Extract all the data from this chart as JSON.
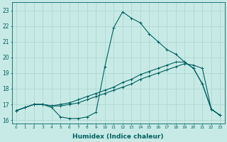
{
  "xlabel": "Humidex (Indice chaleur)",
  "xlim": [
    -0.5,
    23.5
  ],
  "ylim": [
    15.8,
    23.5
  ],
  "yticks": [
    16,
    17,
    18,
    19,
    20,
    21,
    22,
    23
  ],
  "xticks": [
    0,
    1,
    2,
    3,
    4,
    5,
    6,
    7,
    8,
    9,
    10,
    11,
    12,
    13,
    14,
    15,
    16,
    17,
    18,
    19,
    20,
    21,
    22,
    23
  ],
  "bg_color": "#c8eae6",
  "grid_color": "#a8d4d0",
  "line_color": "#006060",
  "series": {
    "main": [
      16.6,
      16.8,
      17.0,
      17.0,
      16.8,
      16.2,
      16.1,
      16.1,
      16.2,
      16.5,
      19.4,
      21.9,
      22.9,
      22.5,
      22.2,
      21.5,
      21.0,
      20.5,
      20.2,
      19.7,
      19.3,
      18.3,
      16.7,
      16.3
    ],
    "line2": [
      16.6,
      16.8,
      17.0,
      17.0,
      16.9,
      16.9,
      17.0,
      17.1,
      17.3,
      17.5,
      17.7,
      17.9,
      18.1,
      18.3,
      18.6,
      18.8,
      19.0,
      19.2,
      19.4,
      19.6,
      19.5,
      19.3,
      16.7,
      16.3
    ],
    "line3": [
      16.6,
      16.8,
      17.0,
      17.0,
      16.9,
      17.0,
      17.1,
      17.3,
      17.5,
      17.7,
      17.9,
      18.1,
      18.4,
      18.6,
      18.9,
      19.1,
      19.3,
      19.5,
      19.7,
      19.7,
      19.3,
      18.3,
      16.7,
      16.3
    ]
  }
}
